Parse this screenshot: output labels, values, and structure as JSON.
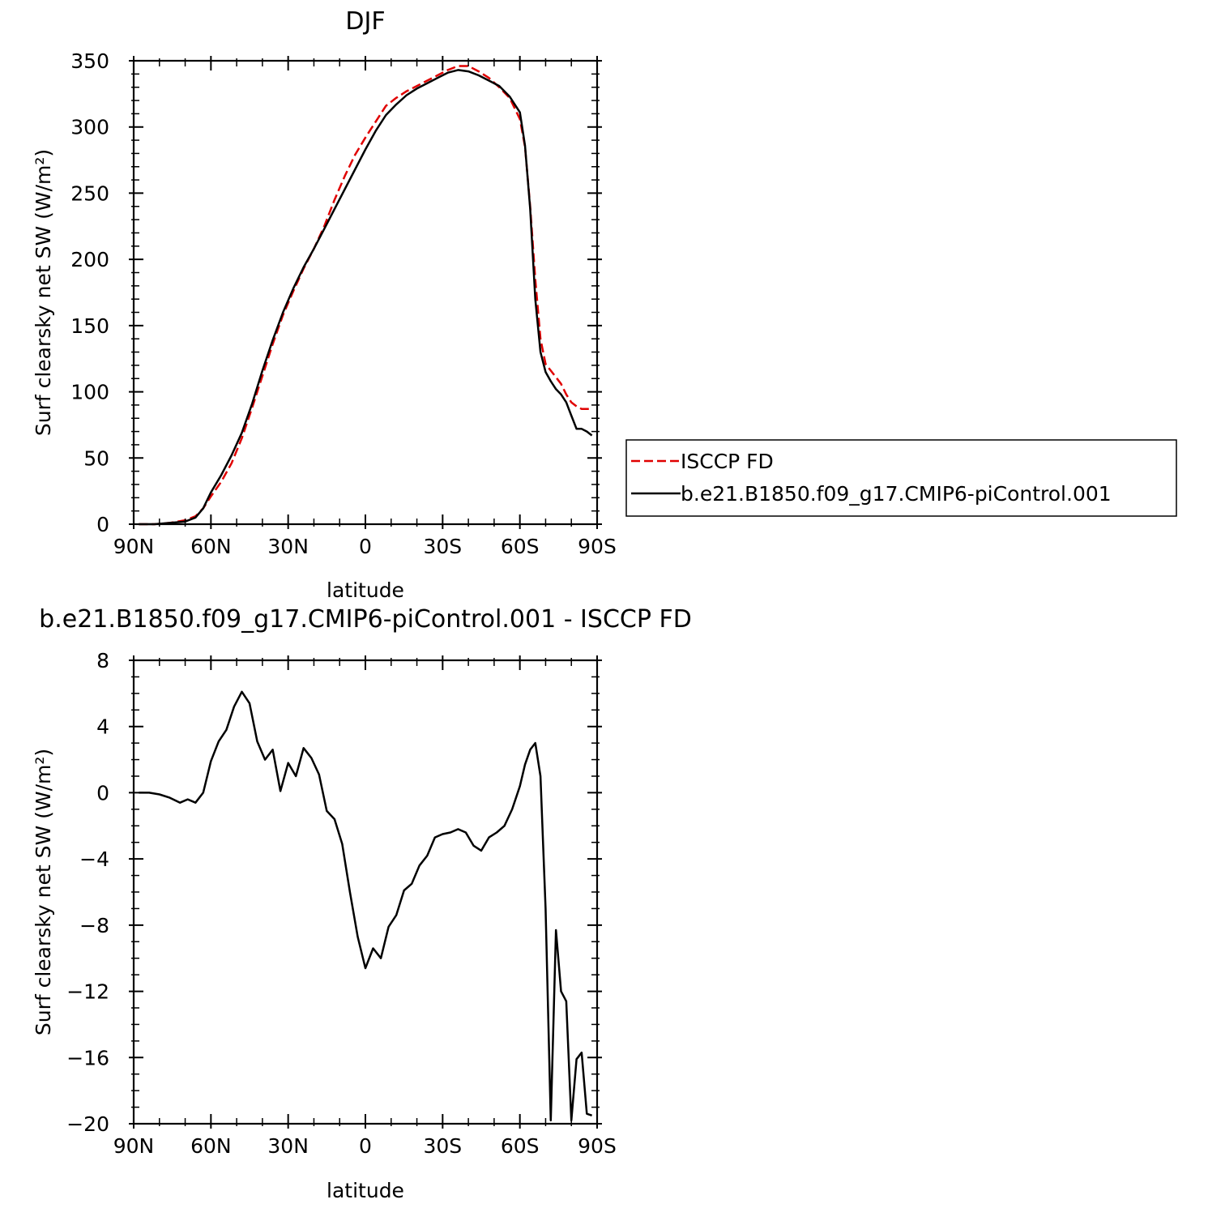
{
  "chart_data": [
    {
      "type": "line",
      "title": "DJF",
      "xlabel": "latitude",
      "ylabel": "Surf clearsky net SW (W/m²)",
      "xlim": [
        -90,
        90
      ],
      "ylim": [
        0,
        350
      ],
      "xtick_values": [
        -90,
        -60,
        -30,
        0,
        30,
        60,
        90
      ],
      "xtick_labels": [
        "90N",
        "60N",
        "30N",
        "0",
        "30S",
        "60S",
        "90S"
      ],
      "ytick_values": [
        0,
        50,
        100,
        150,
        200,
        250,
        300,
        350
      ],
      "ytick_labels": [
        "0",
        "50",
        "100",
        "150",
        "200",
        "250",
        "300",
        "350"
      ],
      "legend": "right",
      "series": [
        {
          "name": "ISCCP FD",
          "color": "#e00000",
          "dash": "dashed",
          "x": [
            -88,
            -82,
            -76,
            -70,
            -66,
            -63,
            -60,
            -56,
            -52,
            -48,
            -44,
            -40,
            -36,
            -32,
            -28,
            -24,
            -20,
            -16,
            -12,
            -8,
            -4,
            0,
            4,
            8,
            12,
            16,
            20,
            24,
            28,
            32,
            36,
            40,
            44,
            48,
            52,
            56,
            60,
            62,
            64,
            66,
            68,
            70,
            72,
            74,
            76,
            78,
            80,
            82,
            84,
            86,
            88
          ],
          "y": [
            0,
            0,
            1,
            3,
            6,
            12,
            21,
            32,
            46,
            65,
            88,
            112,
            136,
            158,
            176,
            193,
            208,
            225,
            245,
            263,
            279,
            292,
            304,
            316,
            322,
            327,
            331,
            335,
            339,
            343,
            346,
            346,
            342,
            337,
            330,
            322,
            306,
            285,
            240,
            185,
            140,
            121,
            116,
            111,
            106,
            98,
            92,
            89,
            87,
            87,
            87
          ]
        },
        {
          "name": "b.e21.B1850.f09_g17.CMIP6-piControl.001",
          "color": "#000000",
          "dash": "solid",
          "x": [
            -88,
            -82,
            -76,
            -70,
            -66,
            -63,
            -60,
            -56,
            -52,
            -48,
            -44,
            -40,
            -36,
            -32,
            -28,
            -24,
            -20,
            -16,
            -12,
            -8,
            -4,
            0,
            4,
            8,
            12,
            16,
            20,
            24,
            28,
            32,
            36,
            40,
            44,
            48,
            52,
            56,
            60,
            62,
            64,
            66,
            68,
            70,
            72,
            74,
            76,
            78,
            80,
            82,
            84,
            86,
            88
          ],
          "y": [
            0,
            0,
            1,
            2,
            5,
            12,
            24,
            37,
            52,
            69,
            91,
            116,
            139,
            160,
            178,
            194,
            208,
            223,
            238,
            253,
            268,
            283,
            297,
            309,
            317,
            324,
            329,
            333,
            337,
            341,
            343,
            342,
            339,
            335,
            331,
            323,
            311,
            286,
            238,
            170,
            130,
            115,
            108,
            102,
            98,
            92,
            82,
            72,
            72,
            70,
            67
          ]
        }
      ]
    },
    {
      "type": "line",
      "title": "b.e21.B1850.f09_g17.CMIP6-piControl.001 - ISCCP FD",
      "xlabel": "latitude",
      "ylabel": "Surf clearsky net SW (W/m²)",
      "xlim": [
        -90,
        90
      ],
      "ylim": [
        -20,
        8
      ],
      "xtick_values": [
        -90,
        -60,
        -30,
        0,
        30,
        60,
        90
      ],
      "xtick_labels": [
        "90N",
        "60N",
        "30N",
        "0",
        "30S",
        "60S",
        "90S"
      ],
      "ytick_values": [
        8,
        4,
        0,
        -4,
        -8,
        -12,
        -16,
        -20
      ],
      "ytick_labels": [
        "8",
        "4",
        "0",
        "−4",
        "−8",
        "−12",
        "−16",
        "−20"
      ],
      "series": [
        {
          "color": "#000000",
          "dash": "solid",
          "x": [
            -88,
            -84,
            -80,
            -76,
            -72,
            -69,
            -66,
            -63,
            -60,
            -57,
            -54,
            -51,
            -48,
            -45,
            -42,
            -39,
            -36,
            -33,
            -30,
            -27,
            -24,
            -21,
            -18,
            -15,
            -12,
            -9,
            -6,
            -3,
            0,
            3,
            6,
            9,
            12,
            15,
            18,
            21,
            24,
            27,
            30,
            33,
            36,
            39,
            42,
            45,
            48,
            51,
            54,
            57,
            60,
            62,
            64,
            66,
            68,
            70,
            72,
            74,
            76,
            78,
            80,
            82,
            84,
            86,
            88
          ],
          "y": [
            0,
            0,
            -0.1,
            -0.3,
            -0.6,
            -0.4,
            -0.6,
            0,
            1.9,
            3.1,
            3.8,
            5.2,
            6.1,
            5.4,
            3.1,
            2.0,
            2.6,
            0.1,
            1.8,
            1.0,
            2.7,
            2.1,
            1.1,
            -1.1,
            -1.6,
            -3.1,
            -6.0,
            -8.7,
            -10.6,
            -9.4,
            -10.0,
            -8.1,
            -7.4,
            -5.9,
            -5.5,
            -4.4,
            -3.8,
            -2.7,
            -2.5,
            -2.4,
            -2.2,
            -2.4,
            -3.2,
            -3.5,
            -2.7,
            -2.4,
            -2.0,
            -1.0,
            0.4,
            1.7,
            2.6,
            3.0,
            1.0,
            -7.0,
            -19.8,
            -8.3,
            -12.0,
            -12.6,
            -19.8,
            -16.1,
            -15.7,
            -19.4,
            -19.5
          ]
        }
      ]
    }
  ],
  "legend_entries": [
    {
      "label": "ISCCP FD",
      "color": "#e00000",
      "dash": "dashed"
    },
    {
      "label": "b.e21.B1850.f09_g17.CMIP6-piControl.001",
      "color": "#000000",
      "dash": "solid"
    }
  ]
}
